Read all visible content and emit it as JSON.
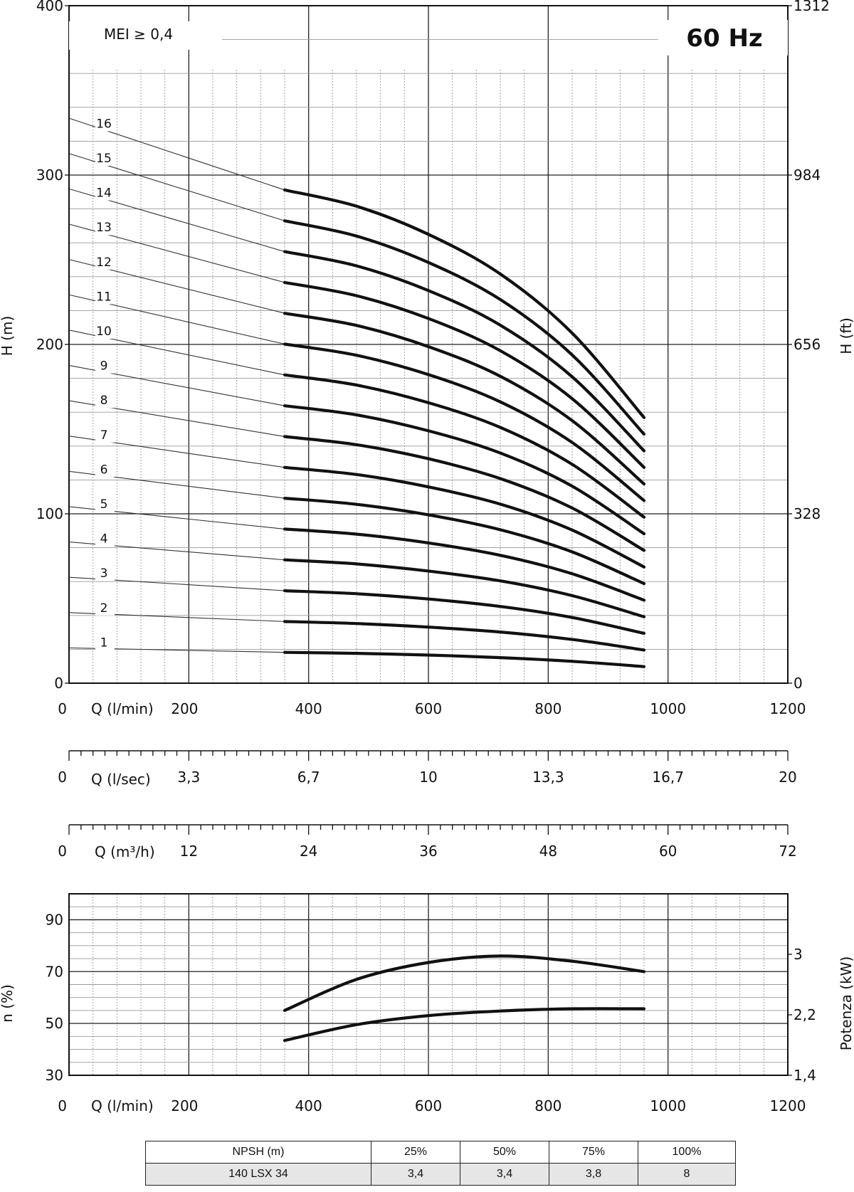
{
  "annotation": "MEI ≥ 0,4",
  "frequency": "60 Hz",
  "head_chart": {
    "ylabel_left": "H (m)",
    "ylabel_right": "H (ft)",
    "y_ticks": [
      "0",
      "100",
      "200",
      "300",
      "400"
    ],
    "y_right_ticks": [
      "0",
      "328",
      "656",
      "984",
      "1312"
    ],
    "x_label": "Q (l/min)",
    "x_ticks": [
      "0",
      "200",
      "400",
      "600",
      "800",
      "1000",
      "1200"
    ]
  },
  "flow_scale_ls": {
    "label": "Q (l/sec)",
    "ticks": [
      "0",
      "3,3",
      "6,7",
      "10",
      "13,3",
      "16,7",
      "20"
    ]
  },
  "flow_scale_m3h": {
    "label": "Q (m³/h)",
    "ticks": [
      "0",
      "12",
      "24",
      "36",
      "48",
      "60",
      "72"
    ]
  },
  "eff_chart": {
    "ylabel_left": "n (%)",
    "ylabel_right": "Potenza (kW)",
    "y_ticks": [
      "30",
      "50",
      "70",
      "90"
    ],
    "y_right_ticks": [
      "1,4",
      "2,2",
      "3"
    ],
    "x_label": "Q (l/min)",
    "x_ticks": [
      "0",
      "200",
      "400",
      "600",
      "800",
      "1000",
      "1200"
    ]
  },
  "npsh_table": {
    "headers": [
      "NPSH (m)",
      "25%",
      "50%",
      "75%",
      "100%"
    ],
    "row": [
      "140 LSX 34",
      "3,4",
      "3,4",
      "3,8",
      "8"
    ]
  },
  "chart_data": [
    {
      "type": "line",
      "xlim": [
        0,
        1200
      ],
      "ylim": [
        0,
        400
      ],
      "x": [
        360,
        480,
        600,
        720,
        840,
        960
      ],
      "series": [
        {
          "name": "1",
          "values": [
            18.2,
            17.6,
            16.6,
            15.1,
            12.9,
            9.8
          ]
        },
        {
          "name": "2",
          "values": [
            36.4,
            35.2,
            33.1,
            30.2,
            25.8,
            19.6
          ]
        },
        {
          "name": "3",
          "values": [
            54.6,
            52.8,
            49.7,
            45.3,
            38.8,
            29.4
          ]
        },
        {
          "name": "4",
          "values": [
            72.8,
            70.4,
            66.2,
            60.4,
            51.7,
            39.2
          ]
        },
        {
          "name": "5",
          "values": [
            91.0,
            88.0,
            82.8,
            75.5,
            64.6,
            49.0
          ]
        },
        {
          "name": "6",
          "values": [
            109.2,
            105.6,
            99.4,
            90.6,
            77.5,
            58.8
          ]
        },
        {
          "name": "7",
          "values": [
            127.4,
            123.2,
            115.9,
            105.7,
            90.4,
            68.6
          ]
        },
        {
          "name": "8",
          "values": [
            145.6,
            140.8,
            132.5,
            120.8,
            103.4,
            78.4
          ]
        },
        {
          "name": "9",
          "values": [
            163.8,
            158.4,
            149.0,
            135.9,
            116.3,
            88.2
          ]
        },
        {
          "name": "10",
          "values": [
            182.0,
            176.0,
            165.6,
            151.0,
            129.2,
            98.0
          ]
        },
        {
          "name": "11",
          "values": [
            200.2,
            193.6,
            182.2,
            166.1,
            142.1,
            107.8
          ]
        },
        {
          "name": "12",
          "values": [
            218.4,
            211.2,
            198.7,
            181.2,
            155.0,
            117.6
          ]
        },
        {
          "name": "13",
          "values": [
            236.6,
            228.8,
            215.3,
            196.3,
            168.0,
            127.4
          ]
        },
        {
          "name": "14",
          "values": [
            254.8,
            246.4,
            231.8,
            211.4,
            180.9,
            137.2
          ]
        },
        {
          "name": "15",
          "values": [
            273.0,
            264.0,
            248.4,
            226.5,
            193.8,
            147.0
          ]
        },
        {
          "name": "16",
          "values": [
            291.2,
            281.6,
            265.0,
            241.6,
            206.7,
            156.8
          ]
        }
      ]
    },
    {
      "type": "line",
      "xlim": [
        0,
        1200
      ],
      "ylim": [
        30,
        100
      ],
      "x": [
        360,
        480,
        600,
        720,
        840,
        960
      ],
      "series": [
        {
          "values": [
            55,
            67,
            73.5,
            76,
            74,
            70
          ]
        }
      ]
    },
    {
      "type": "line",
      "xlim": [
        0,
        1200
      ],
      "ylim": [
        1.4,
        3.8
      ],
      "x": [
        360,
        480,
        600,
        720,
        840,
        960
      ],
      "series": [
        {
          "values": [
            1.86,
            2.07,
            2.19,
            2.25,
            2.28,
            2.28
          ]
        }
      ]
    }
  ]
}
